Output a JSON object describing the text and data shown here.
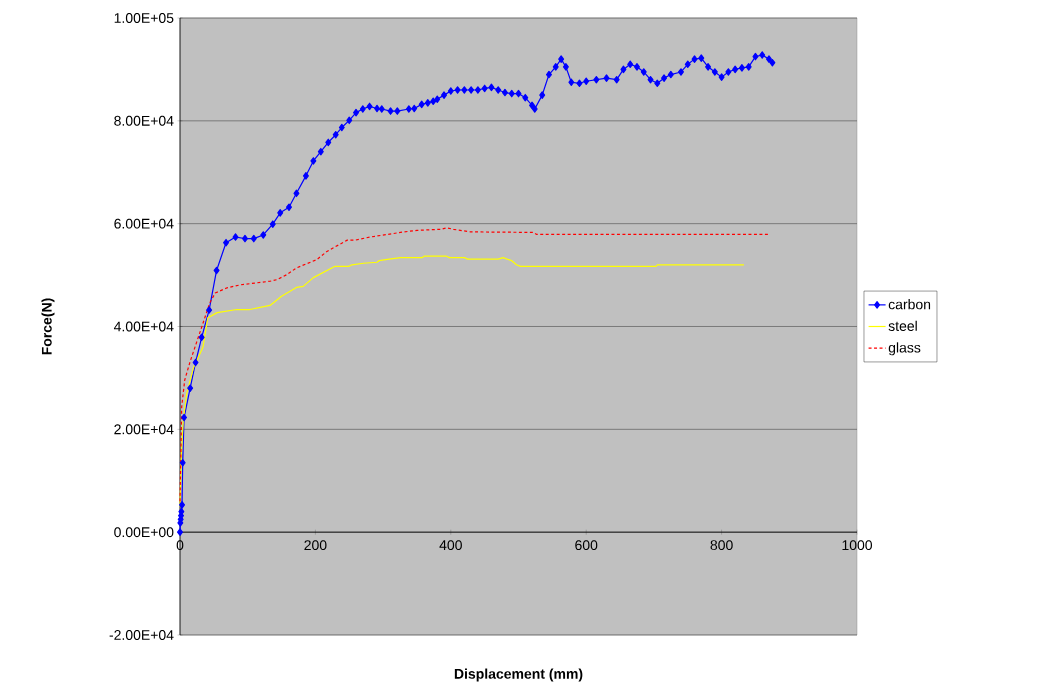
{
  "chart_data": {
    "type": "line",
    "xlabel": "Displacement (mm)",
    "ylabel": "Force(N)",
    "xlim": [
      0,
      1000
    ],
    "xticks": [
      0,
      200,
      400,
      600,
      800,
      1000
    ],
    "ylim": [
      -20000,
      100000
    ],
    "yticks": [
      {
        "value": -20000,
        "label": "-2.00E+04"
      },
      {
        "value": 0,
        "label": "0.00E+00"
      },
      {
        "value": 20000,
        "label": "2.00E+04"
      },
      {
        "value": 40000,
        "label": "4.00E+04"
      },
      {
        "value": 60000,
        "label": "6.00E+04"
      },
      {
        "value": 80000,
        "label": "8.00E+04"
      },
      {
        "value": 100000,
        "label": "1.00E+05"
      }
    ],
    "grid": "y",
    "legend": "right",
    "series": [
      {
        "name": "carbon",
        "color": "#0000ff",
        "marker": "diamond",
        "line_style": "solid",
        "x": [
          0,
          0.5,
          1,
          1.5,
          2,
          3,
          4,
          6,
          15,
          23,
          32,
          43,
          54,
          68,
          82,
          96,
          109,
          123,
          137,
          148,
          161,
          172,
          186,
          197,
          208,
          219,
          230,
          239,
          250,
          260,
          270,
          280,
          291,
          298,
          311,
          321,
          338,
          346,
          357,
          366,
          374,
          380,
          390,
          400,
          410,
          420,
          430,
          440,
          450,
          460,
          470,
          480,
          490,
          500,
          510,
          520,
          524,
          535,
          545,
          555,
          563,
          570,
          578,
          590,
          600,
          615,
          630,
          645,
          655,
          665,
          675,
          685,
          695,
          705,
          715,
          725,
          740,
          750,
          760,
          770,
          780,
          790,
          800,
          810,
          820,
          830,
          840,
          850,
          860,
          870,
          875
        ],
        "values": [
          0,
          1800,
          2500,
          3200,
          4000,
          5300,
          13500,
          22300,
          28000,
          33000,
          37900,
          43200,
          50900,
          56300,
          57400,
          57100,
          57100,
          57800,
          59900,
          62100,
          63200,
          65900,
          69300,
          72200,
          74000,
          75800,
          77300,
          78700,
          80100,
          81600,
          82300,
          82800,
          82400,
          82300,
          81900,
          81900,
          82300,
          82400,
          83200,
          83500,
          83800,
          84200,
          85000,
          85800,
          86000,
          86000,
          86000,
          86000,
          86300,
          86500,
          86000,
          85500,
          85300,
          85300,
          84500,
          83000,
          82300,
          85000,
          89000,
          90500,
          92000,
          90500,
          87500,
          87300,
          87700,
          88000,
          88300,
          88000,
          90000,
          91000,
          90500,
          89500,
          88000,
          87300,
          88300,
          89000,
          89500,
          91000,
          92000,
          92200,
          90500,
          89500,
          88500,
          89500,
          90000,
          90300,
          90500,
          92500,
          92800,
          92000,
          91300
        ]
      },
      {
        "name": "steel",
        "color": "#ffff00",
        "marker": "none",
        "line_style": "solid",
        "x": [
          0,
          2,
          5,
          10,
          20,
          34,
          41,
          55,
          84,
          103,
          133,
          150,
          172,
          182,
          197,
          229,
          249,
          254,
          271,
          291,
          294,
          309,
          326,
          358,
          361,
          393,
          398,
          420,
          425,
          470,
          477,
          490,
          497,
          503,
          703,
          705,
          833
        ],
        "values": [
          5000,
          15000,
          22000,
          27000,
          32000,
          36000,
          41700,
          42700,
          43300,
          43300,
          44100,
          45900,
          47600,
          47800,
          49500,
          51700,
          51700,
          52000,
          52300,
          52500,
          52800,
          53100,
          53400,
          53400,
          53700,
          53700,
          53400,
          53400,
          53100,
          53100,
          53400,
          52800,
          52000,
          51700,
          51700,
          52000,
          52000
        ]
      },
      {
        "name": "glass",
        "color": "#ff0000",
        "marker": "none",
        "line_style": "dashed",
        "x": [
          0,
          2.5,
          7,
          15,
          27,
          44,
          52,
          69,
          89,
          133,
          143,
          158,
          172,
          202,
          217,
          247,
          259,
          281,
          306,
          331,
          350,
          385,
          394,
          404,
          429,
          522,
          527,
          870
        ],
        "values": [
          6000,
          24400,
          29600,
          33200,
          37900,
          44600,
          46500,
          47500,
          48100,
          48800,
          49100,
          50100,
          51400,
          53000,
          54600,
          56800,
          56800,
          57400,
          57900,
          58400,
          58700,
          58900,
          59200,
          58900,
          58400,
          58300,
          57900,
          57900
        ]
      }
    ]
  }
}
